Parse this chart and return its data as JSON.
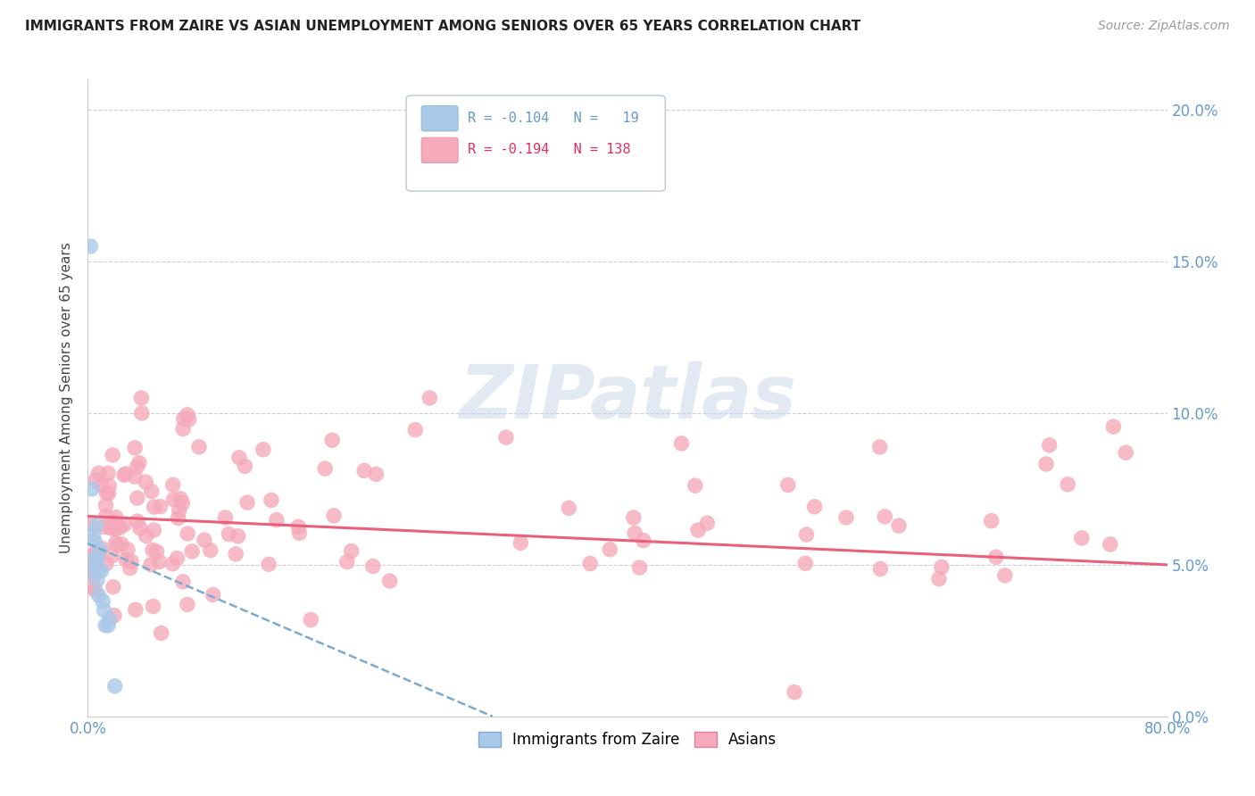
{
  "title": "IMMIGRANTS FROM ZAIRE VS ASIAN UNEMPLOYMENT AMONG SENIORS OVER 65 YEARS CORRELATION CHART",
  "source": "Source: ZipAtlas.com",
  "ylabel": "Unemployment Among Seniors over 65 years",
  "xlim": [
    0.0,
    0.8
  ],
  "ylim": [
    0.0,
    0.21
  ],
  "xticks": [
    0.0,
    0.8
  ],
  "xtick_labels": [
    "0.0%",
    "80.0%"
  ],
  "yticks": [
    0.0,
    0.05,
    0.1,
    0.15,
    0.2
  ],
  "ytick_labels_right": [
    "0.0%",
    "5.0%",
    "10.0%",
    "15.0%",
    "20.0%"
  ],
  "blue_R": -0.104,
  "blue_N": 19,
  "pink_R": -0.194,
  "pink_N": 138,
  "blue_color": "#aac8e8",
  "pink_color": "#f5aabb",
  "blue_line_color": "#7aaad0",
  "pink_line_color": "#e8607a",
  "background_color": "#ffffff",
  "grid_color": "#ccccdd",
  "watermark_color": "#ccd8e8",
  "tick_color": "#6699cc",
  "ylabel_color": "#444444",
  "title_color": "#222222",
  "source_color": "#999999"
}
